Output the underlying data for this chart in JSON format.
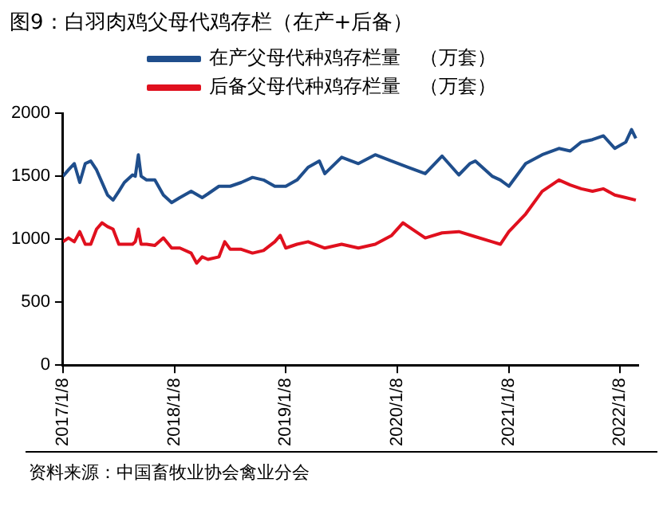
{
  "chart_data": {
    "type": "line",
    "title": "图9：白羽肉鸡父母代鸡存栏（在产+后备）",
    "annotations": [
      "资料来源：中国畜牧业协会禽业分会"
    ],
    "xlim": [
      "2017-01-08",
      "2022-03-08"
    ],
    "xticks": [
      {
        "value": "2017-01-08",
        "label": "2017/1/8"
      },
      {
        "value": "2018-01-08",
        "label": "2018/1/8"
      },
      {
        "value": "2019-01-08",
        "label": "2019/1/8"
      },
      {
        "value": "2020-01-08",
        "label": "2020/1/8"
      },
      {
        "value": "2021-01-08",
        "label": "2021/1/8"
      },
      {
        "value": "2022-01-08",
        "label": "2022/1/8"
      }
    ],
    "ylim": [
      0,
      2000
    ],
    "yticks": [
      0,
      500,
      1000,
      1500,
      2000
    ],
    "grid": false,
    "legend": "top",
    "marker": "none",
    "line_style": "solid",
    "series": [
      {
        "name": "在产父母代种鸡存栏量　（万套）",
        "color": "#1f4e8c",
        "x": [
          "2017-01-08",
          "2017-01-26",
          "2017-02-14",
          "2017-03-04",
          "2017-03-22",
          "2017-04-09",
          "2017-04-28",
          "2017-05-25",
          "2017-06-03",
          "2017-06-21",
          "2017-07-10",
          "2017-07-28",
          "2017-08-24",
          "2017-09-02",
          "2017-09-12",
          "2017-09-21",
          "2017-10-09",
          "2017-11-05",
          "2017-12-03",
          "2017-12-30",
          "2018-01-26",
          "2018-03-04",
          "2018-04-09",
          "2018-04-28",
          "2018-06-03",
          "2018-07-10",
          "2018-08-15",
          "2018-09-21",
          "2018-10-27",
          "2018-12-03",
          "2019-01-08",
          "2019-02-14",
          "2019-03-22",
          "2019-04-28",
          "2019-05-16",
          "2019-07-10",
          "2019-09-03",
          "2019-10-28",
          "2019-12-21",
          "2020-02-14",
          "2020-04-09",
          "2020-06-03",
          "2020-07-28",
          "2020-09-02",
          "2020-09-20",
          "2020-11-14",
          "2020-12-11",
          "2021-01-08",
          "2021-03-04",
          "2021-04-27",
          "2021-06-21",
          "2021-07-28",
          "2021-09-02",
          "2021-10-09",
          "2021-11-14",
          "2021-12-21",
          "2022-01-26",
          "2022-02-14",
          "2022-02-28"
        ],
        "values": [
          1500,
          1550,
          1600,
          1450,
          1600,
          1620,
          1550,
          1400,
          1350,
          1310,
          1380,
          1450,
          1510,
          1500,
          1670,
          1500,
          1470,
          1470,
          1350,
          1290,
          1330,
          1380,
          1330,
          1360,
          1420,
          1420,
          1450,
          1490,
          1470,
          1420,
          1420,
          1470,
          1570,
          1620,
          1520,
          1650,
          1600,
          1670,
          1620,
          1570,
          1520,
          1660,
          1510,
          1600,
          1620,
          1500,
          1470,
          1420,
          1600,
          1670,
          1720,
          1700,
          1770,
          1790,
          1820,
          1720,
          1770,
          1870,
          1800
        ]
      },
      {
        "name": "后备父母代种鸡存栏量　（万套）",
        "color": "#e0101e",
        "x": [
          "2017-01-08",
          "2017-01-26",
          "2017-02-14",
          "2017-03-04",
          "2017-03-22",
          "2017-04-09",
          "2017-04-28",
          "2017-05-16",
          "2017-06-03",
          "2017-06-21",
          "2017-07-10",
          "2017-07-28",
          "2017-08-24",
          "2017-09-02",
          "2017-09-12",
          "2017-09-21",
          "2017-10-09",
          "2017-11-05",
          "2017-12-03",
          "2017-12-30",
          "2018-01-26",
          "2018-03-04",
          "2018-03-22",
          "2018-04-09",
          "2018-04-28",
          "2018-06-03",
          "2018-06-22",
          "2018-07-10",
          "2018-08-15",
          "2018-09-21",
          "2018-10-27",
          "2018-12-03",
          "2018-12-21",
          "2019-01-08",
          "2019-02-14",
          "2019-03-22",
          "2019-05-16",
          "2019-07-10",
          "2019-09-03",
          "2019-10-28",
          "2019-12-21",
          "2020-01-27",
          "2020-02-14",
          "2020-04-09",
          "2020-06-03",
          "2020-07-28",
          "2020-09-20",
          "2020-11-14",
          "2020-12-11",
          "2021-01-08",
          "2021-03-04",
          "2021-04-27",
          "2021-06-21",
          "2021-07-28",
          "2021-09-02",
          "2021-10-09",
          "2021-11-14",
          "2021-12-21",
          "2022-01-26",
          "2022-02-28"
        ],
        "values": [
          980,
          1010,
          980,
          1060,
          960,
          960,
          1080,
          1130,
          1100,
          1080,
          960,
          960,
          960,
          980,
          1080,
          960,
          960,
          950,
          1010,
          930,
          930,
          890,
          810,
          860,
          840,
          860,
          980,
          920,
          920,
          890,
          910,
          980,
          1030,
          930,
          960,
          980,
          930,
          960,
          930,
          960,
          1030,
          1130,
          1100,
          1010,
          1050,
          1060,
          1020,
          980,
          960,
          1060,
          1200,
          1380,
          1470,
          1430,
          1400,
          1380,
          1400,
          1350,
          1330,
          1310
        ]
      }
    ]
  }
}
